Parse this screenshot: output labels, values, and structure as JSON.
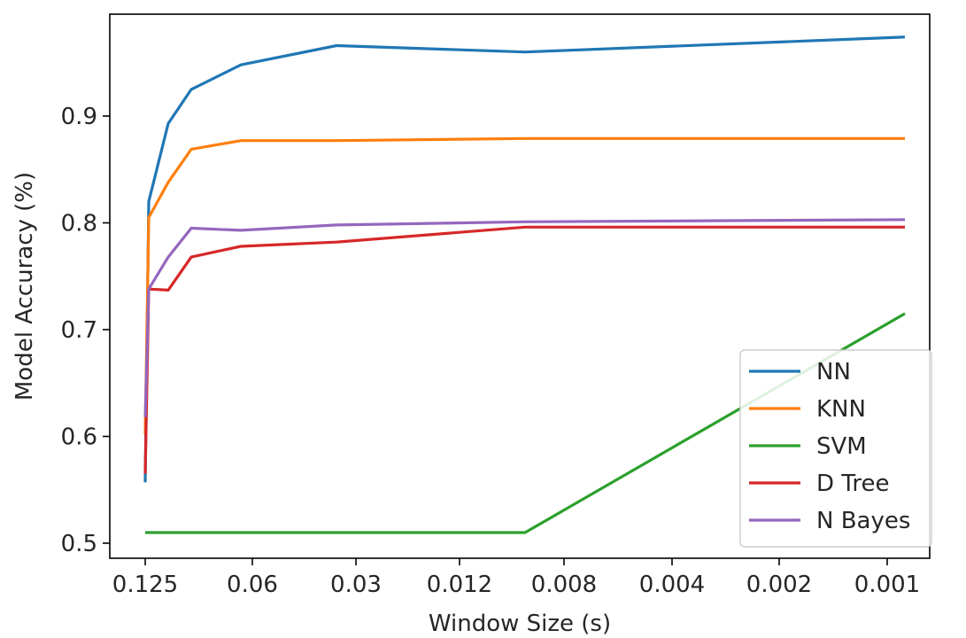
{
  "chart_data": {
    "type": "line",
    "title": "",
    "xlabel": "Window Size (s)",
    "ylabel": "Model Accuracy (%)",
    "x": [
      0.125,
      0.12,
      0.1,
      0.09,
      0.06,
      0.03,
      0.01,
      0.0008
    ],
    "xticks": [
      {
        "label": "0.125",
        "value": 0.125
      },
      {
        "label": "0.06",
        "value": 0.06
      },
      {
        "label": "0.03",
        "value": 0.03
      },
      {
        "label": "0.012",
        "value": 0.012
      },
      {
        "label": "0.008",
        "value": 0.008
      },
      {
        "label": "0.004",
        "value": 0.004
      },
      {
        "label": "0.002",
        "value": 0.002
      },
      {
        "label": "0.001",
        "value": 0.001
      }
    ],
    "yticks": [
      {
        "label": "0.5",
        "value": 0.5
      },
      {
        "label": "0.6",
        "value": 0.6
      },
      {
        "label": "0.7",
        "value": 0.7
      },
      {
        "label": "0.8",
        "value": 0.8
      },
      {
        "label": "0.9",
        "value": 0.9
      }
    ],
    "ylim": [
      0.485,
      0.98
    ],
    "grid": false,
    "legend_position": "bottom-right",
    "series": [
      {
        "name": "NN",
        "color": "#1f77b4",
        "values": [
          0.557,
          0.82,
          0.893,
          0.925,
          0.948,
          0.966,
          0.96,
          0.974
        ]
      },
      {
        "name": "KNN",
        "color": "#ff7f0e",
        "values": [
          0.602,
          0.805,
          0.838,
          0.869,
          0.877,
          0.877,
          0.879,
          0.879
        ]
      },
      {
        "name": "SVM",
        "color": "#2ca02c",
        "values": [
          0.51,
          0.51,
          0.51,
          0.51,
          0.51,
          0.51,
          0.51,
          0.715
        ]
      },
      {
        "name": "D Tree",
        "color": "#d62728",
        "values": [
          0.565,
          0.738,
          0.737,
          0.768,
          0.778,
          0.782,
          0.796,
          0.796
        ]
      },
      {
        "name": "N Bayes",
        "color": "#9467bd",
        "values": [
          0.618,
          0.738,
          0.768,
          0.795,
          0.793,
          0.798,
          0.801,
          0.803
        ]
      }
    ]
  }
}
